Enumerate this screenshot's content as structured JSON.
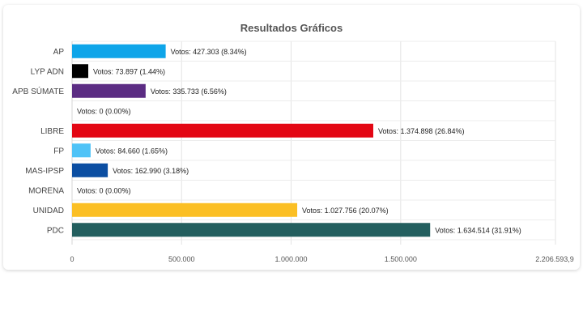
{
  "chart_data": {
    "type": "bar",
    "orientation": "horizontal",
    "title": "Resultados Gráficos",
    "xlim": [
      0,
      2206593.9
    ],
    "xticks": [
      0,
      500000,
      1000000,
      1500000,
      2206593.9
    ],
    "xtick_labels": [
      "0",
      "500.000",
      "1.000.000",
      "1.500.000",
      "2.206.593,9"
    ],
    "grid": true,
    "legend": "none",
    "categories": [
      "AP",
      "LYP ADN",
      "APB SÚMATE",
      "",
      "LIBRE",
      "FP",
      "MAS-IPSP",
      "MORENA",
      "UNIDAD",
      "PDC"
    ],
    "values": [
      427303,
      73897,
      335733,
      0,
      1374898,
      84660,
      162990,
      0,
      1027756,
      1634514
    ],
    "data_labels": [
      "Votos: 427.303 (8.34%)",
      "Votos: 73.897 (1.44%)",
      "Votos: 335.733 (6.56%)",
      "Votos: 0 (0.00%)",
      "Votos: 1.374.898 (26.84%)",
      "Votos: 84.660 (1.65%)",
      "Votos: 162.990 (3.18%)",
      "Votos: 0 (0.00%)",
      "Votos: 1.027.756 (20.07%)",
      "Votos: 1.634.514 (31.91%)"
    ],
    "colors": [
      "#0ea5e9",
      "#000000",
      "#5b2c83",
      "#cccccc",
      "#e30613",
      "#4fc3f7",
      "#0b4ea2",
      "#8b1a1a",
      "#fbbf24",
      "#235f5f"
    ]
  }
}
